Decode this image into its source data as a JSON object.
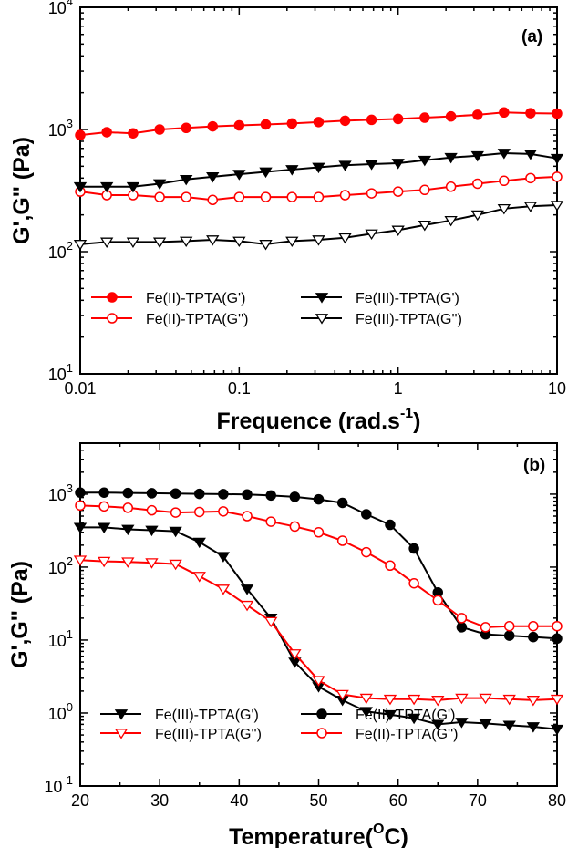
{
  "chart_data": [
    {
      "type": "line",
      "panel_label": "(a)",
      "xlabel": "Frequence (rad.s-1)",
      "xlabel_parts": {
        "text": "Frequence (rad.s",
        "sup": "-1",
        "close": ")"
      },
      "ylabel": "G',G'' (Pa)",
      "x_scale": "log",
      "y_scale": "log",
      "xlim": [
        0.01,
        10
      ],
      "ylim": [
        10,
        10000
      ],
      "x_ticks": [
        0.01,
        0.1,
        1,
        10
      ],
      "x_tick_labels": [
        "0.01",
        "0.1",
        "1",
        "10"
      ],
      "y_ticks": [
        10,
        100,
        1000,
        10000
      ],
      "y_tick_labels": [
        {
          "base": "10",
          "exp": "1"
        },
        {
          "base": "10",
          "exp": "2"
        },
        {
          "base": "10",
          "exp": "3"
        },
        {
          "base": "10",
          "exp": "4"
        }
      ],
      "legend_position": "bottom-left",
      "series": [
        {
          "name": "Fe(II)-TPTA(G')",
          "color": "#ff0000",
          "marker": "circle-filled",
          "x": [
            0.01,
            0.0147,
            0.0215,
            0.0316,
            0.0464,
            0.0681,
            0.1,
            0.147,
            0.215,
            0.316,
            0.464,
            0.681,
            1,
            1.47,
            2.15,
            3.16,
            4.64,
            6.81,
            10
          ],
          "y": [
            900,
            950,
            930,
            1000,
            1030,
            1060,
            1080,
            1100,
            1120,
            1150,
            1180,
            1200,
            1220,
            1250,
            1280,
            1320,
            1380,
            1360,
            1350
          ]
        },
        {
          "name": "Fe(II)-TPTA(G'')",
          "color": "#ff0000",
          "marker": "circle-open",
          "x": [
            0.01,
            0.0147,
            0.0215,
            0.0316,
            0.0464,
            0.0681,
            0.1,
            0.147,
            0.215,
            0.316,
            0.464,
            0.681,
            1,
            1.47,
            2.15,
            3.16,
            4.64,
            6.81,
            10
          ],
          "y": [
            310,
            290,
            290,
            280,
            280,
            265,
            280,
            280,
            280,
            280,
            290,
            300,
            310,
            320,
            340,
            360,
            380,
            400,
            410
          ]
        },
        {
          "name": "Fe(III)-TPTA(G')",
          "color": "#000000",
          "marker": "triangle-down-filled",
          "x": [
            0.01,
            0.0147,
            0.0215,
            0.0316,
            0.0464,
            0.0681,
            0.1,
            0.147,
            0.215,
            0.316,
            0.464,
            0.681,
            1,
            1.47,
            2.15,
            3.16,
            4.64,
            6.81,
            10
          ],
          "y": [
            340,
            340,
            340,
            360,
            390,
            410,
            430,
            450,
            470,
            490,
            510,
            520,
            530,
            560,
            590,
            610,
            640,
            630,
            580
          ]
        },
        {
          "name": "Fe(III)-TPTA(G'')",
          "color": "#000000",
          "marker": "triangle-down-open",
          "x": [
            0.01,
            0.0147,
            0.0215,
            0.0316,
            0.0464,
            0.0681,
            0.1,
            0.147,
            0.215,
            0.316,
            0.464,
            0.681,
            1,
            1.47,
            2.15,
            3.16,
            4.64,
            6.81,
            10
          ],
          "y": [
            115,
            120,
            120,
            120,
            122,
            125,
            122,
            115,
            122,
            125,
            130,
            140,
            150,
            165,
            180,
            200,
            225,
            235,
            240
          ]
        }
      ],
      "legend_order": [
        0,
        2,
        1,
        3
      ]
    },
    {
      "type": "line",
      "panel_label": "(b)",
      "xlabel": "Temperature(OC)",
      "xlabel_parts": {
        "text": "Temperature(",
        "sup": "O",
        "close": "C)"
      },
      "ylabel": "G',G'' (Pa)",
      "x_scale": "linear",
      "y_scale": "log",
      "xlim": [
        20,
        80
      ],
      "ylim": [
        0.1,
        5000
      ],
      "x_ticks": [
        20,
        30,
        40,
        50,
        60,
        70,
        80
      ],
      "x_tick_labels": [
        "20",
        "30",
        "40",
        "50",
        "60",
        "70",
        "80"
      ],
      "y_ticks": [
        0.1,
        1,
        10,
        100,
        1000
      ],
      "y_tick_labels": [
        {
          "base": "10",
          "exp": "-1"
        },
        {
          "base": "10",
          "exp": "0"
        },
        {
          "base": "10",
          "exp": "1"
        },
        {
          "base": "10",
          "exp": "2"
        },
        {
          "base": "10",
          "exp": "3"
        }
      ],
      "legend_position": "bottom-center",
      "series": [
        {
          "name": "Fe(III)-TPTA(G')",
          "color": "#000000",
          "marker": "triangle-down-filled",
          "x": [
            20,
            23,
            26,
            29,
            32,
            35,
            38,
            41,
            44,
            47,
            50,
            53,
            56,
            59,
            62,
            65,
            68,
            71,
            74,
            77,
            80
          ],
          "y": [
            350,
            350,
            330,
            320,
            310,
            220,
            140,
            50,
            20,
            5,
            2.3,
            1.5,
            1.05,
            0.95,
            0.85,
            0.7,
            0.75,
            0.72,
            0.68,
            0.65,
            0.6
          ]
        },
        {
          "name": "Fe(III)-TPTA(G'')",
          "color": "#ff0000",
          "marker": "triangle-down-open",
          "x": [
            20,
            23,
            26,
            29,
            32,
            35,
            38,
            41,
            44,
            47,
            50,
            53,
            56,
            59,
            62,
            65,
            68,
            71,
            74,
            77,
            80
          ],
          "y": [
            125,
            120,
            118,
            115,
            110,
            75,
            50,
            30,
            18,
            6.5,
            2.8,
            1.8,
            1.6,
            1.55,
            1.55,
            1.5,
            1.6,
            1.6,
            1.55,
            1.5,
            1.55
          ]
        },
        {
          "name": "Fe(II)-TPTA(G')",
          "color": "#000000",
          "marker": "circle-filled",
          "x": [
            20,
            23,
            26,
            29,
            32,
            35,
            38,
            41,
            44,
            47,
            50,
            53,
            56,
            59,
            62,
            65,
            68,
            71,
            74,
            77,
            80
          ],
          "y": [
            1050,
            1050,
            1040,
            1030,
            1020,
            1010,
            1000,
            990,
            960,
            920,
            850,
            760,
            530,
            380,
            180,
            45,
            15,
            12,
            11.5,
            11,
            10.5
          ]
        },
        {
          "name": "Fe(II)-TPTA(G'')",
          "color": "#ff0000",
          "marker": "circle-open",
          "x": [
            20,
            23,
            26,
            29,
            32,
            35,
            38,
            41,
            44,
            47,
            50,
            53,
            56,
            59,
            62,
            65,
            68,
            71,
            74,
            77,
            80
          ],
          "y": [
            700,
            680,
            650,
            600,
            560,
            570,
            580,
            500,
            420,
            360,
            300,
            230,
            160,
            105,
            60,
            35,
            20,
            15,
            15.5,
            15.5,
            15.5
          ]
        }
      ],
      "legend_order": [
        0,
        2,
        1,
        3
      ]
    }
  ]
}
